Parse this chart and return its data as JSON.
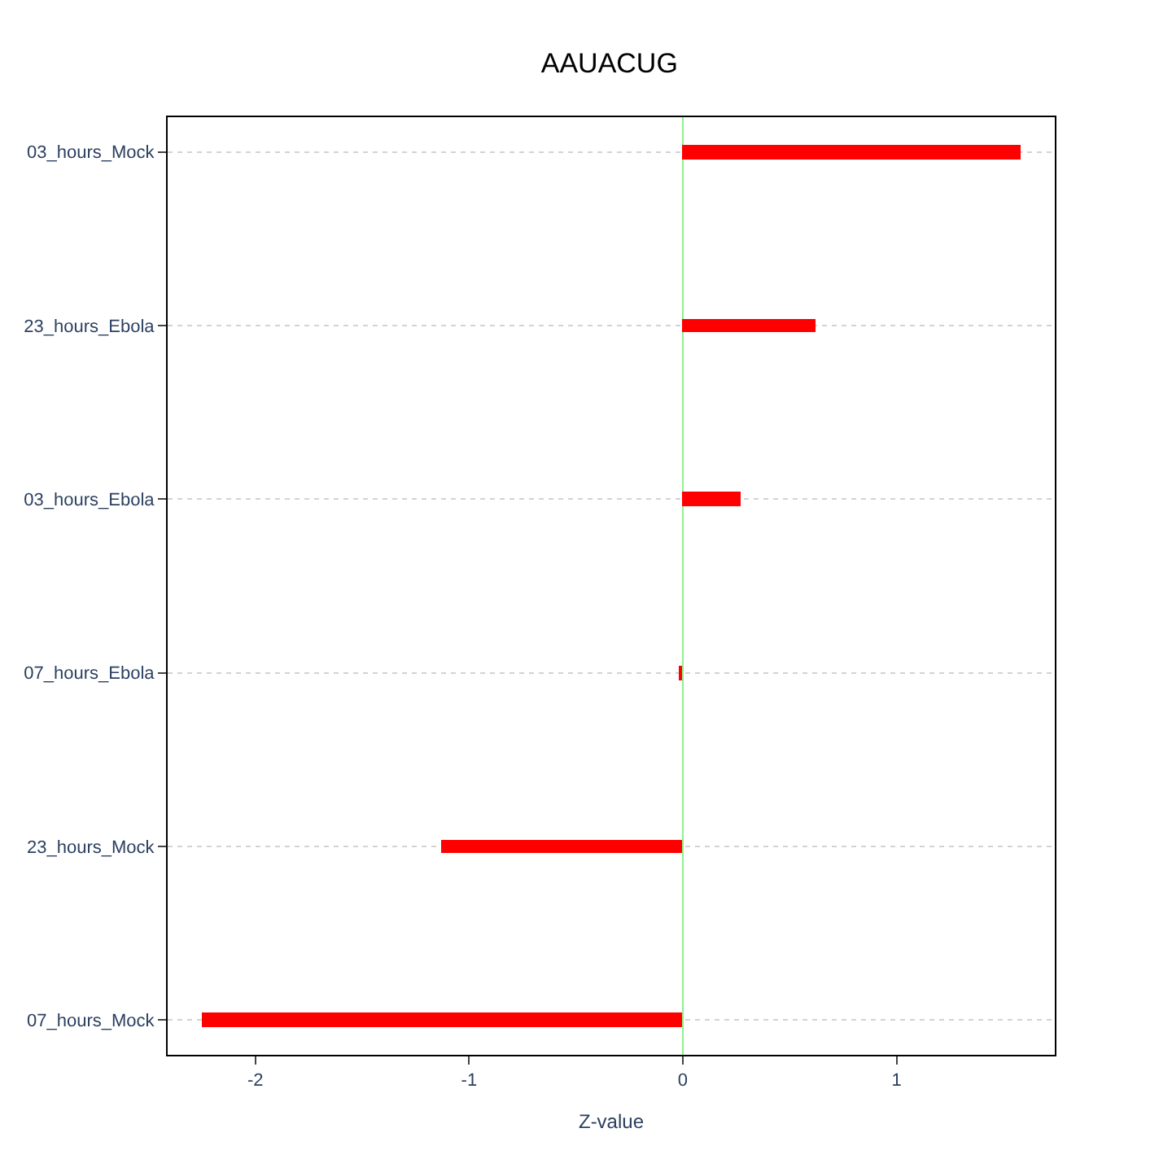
{
  "chart_data": {
    "type": "bar",
    "orientation": "horizontal",
    "title": "AAUACUG",
    "xlabel": "Z-value",
    "categories": [
      "03_hours_Mock",
      "23_hours_Ebola",
      "03_hours_Ebola",
      "07_hours_Ebola",
      "23_hours_Mock",
      "07_hours_Mock"
    ],
    "values": [
      1.58,
      0.62,
      0.27,
      -0.02,
      -1.13,
      -2.25
    ],
    "color": "#ff0000",
    "xlim": [
      -2.41,
      1.74
    ],
    "xticks": [
      -2,
      -1,
      0,
      1
    ],
    "grid": "y",
    "ref_lines": [
      {
        "axis": "x",
        "value": 0,
        "color": "#90ee90"
      }
    ]
  }
}
